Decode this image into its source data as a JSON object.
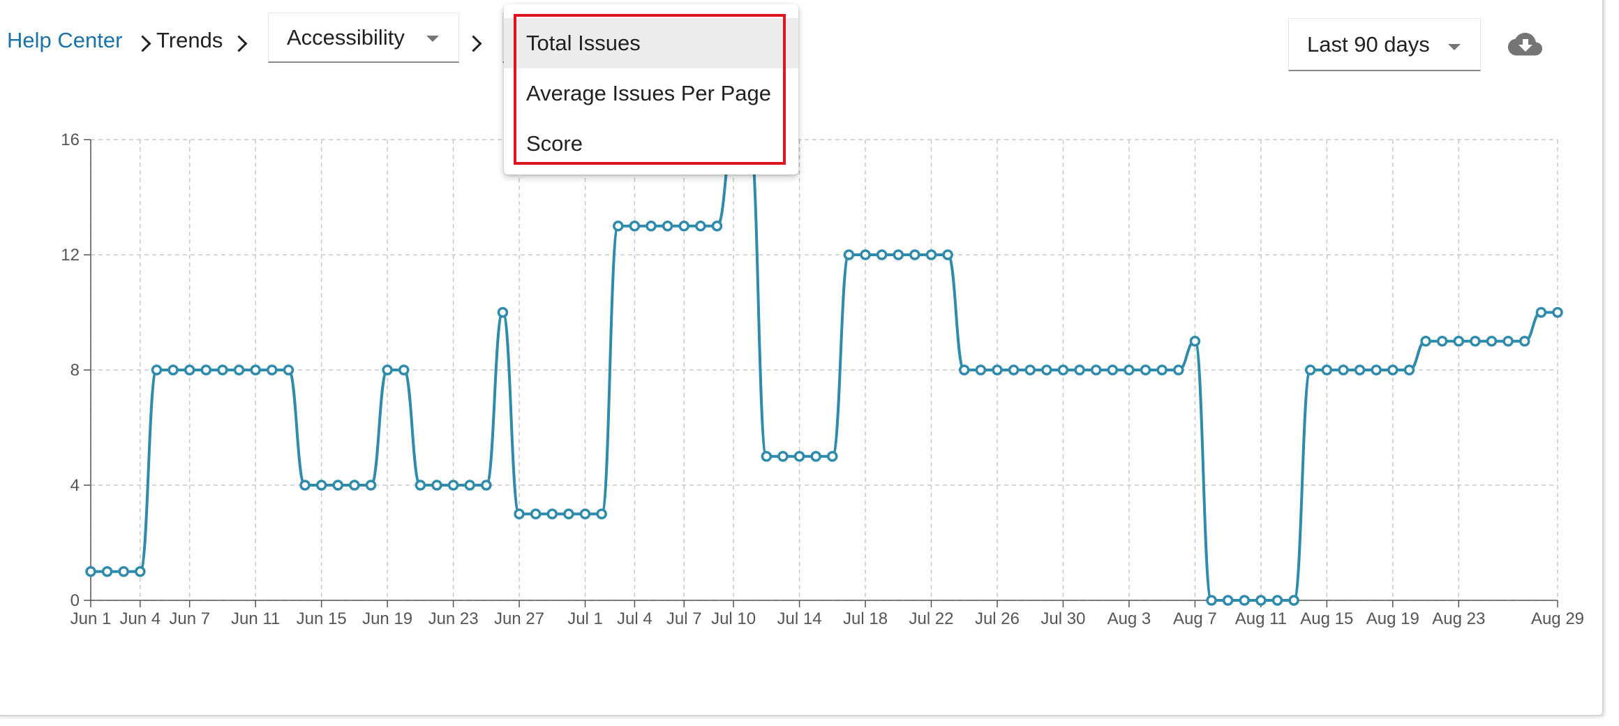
{
  "breadcrumb": {
    "root": "Help Center",
    "section": "Trends"
  },
  "filters": {
    "category": "Accessibility",
    "date_range": "Last 90 days"
  },
  "icons": {
    "download": "cloud-download-icon"
  },
  "metric_menu": {
    "options": [
      "Total Issues",
      "Average Issues Per Page",
      "Score"
    ],
    "selected_index": 0
  },
  "colors": {
    "line": "#2e8bab",
    "link": "#1a73a8",
    "highlight": "#e0141e"
  },
  "chart_data": {
    "type": "line",
    "ylim": [
      0,
      16
    ],
    "y_ticks": [
      0,
      4,
      8,
      12,
      16
    ],
    "x_ticks": [
      "Jun 1",
      "Jun 4",
      "Jun 7",
      "Jun 11",
      "Jun 15",
      "Jun 19",
      "Jun 23",
      "Jun 27",
      "Jul 1",
      "Jul 4",
      "Jul 7",
      "Jul 10",
      "Jul 14",
      "Jul 18",
      "Jul 22",
      "Jul 26",
      "Jul 30",
      "Aug 3",
      "Aug 7",
      "Aug 11",
      "Aug 15",
      "Aug 19",
      "Aug 23",
      "Aug 29"
    ],
    "x_tick_day_index": [
      0,
      3,
      6,
      10,
      14,
      18,
      22,
      26,
      30,
      33,
      36,
      39,
      43,
      47,
      51,
      55,
      59,
      63,
      67,
      71,
      75,
      79,
      83,
      89
    ],
    "grid": true,
    "series": [
      {
        "values": [
          1,
          1,
          1,
          1,
          8,
          8,
          8,
          8,
          8,
          8,
          8,
          8,
          8,
          4,
          4,
          4,
          4,
          4,
          8,
          8,
          4,
          4,
          4,
          4,
          4,
          10,
          3,
          3,
          3,
          3,
          3,
          3,
          13,
          13,
          13,
          13,
          13,
          13,
          13,
          16,
          16,
          5,
          5,
          5,
          5,
          5,
          12,
          12,
          12,
          12,
          12,
          12,
          12,
          8,
          8,
          8,
          8,
          8,
          8,
          8,
          8,
          8,
          8,
          8,
          8,
          8,
          8,
          9,
          0,
          0,
          0,
          0,
          0,
          0,
          8,
          8,
          8,
          8,
          8,
          8,
          8,
          9,
          9,
          9,
          9,
          9,
          9,
          9,
          10,
          10
        ]
      }
    ]
  }
}
